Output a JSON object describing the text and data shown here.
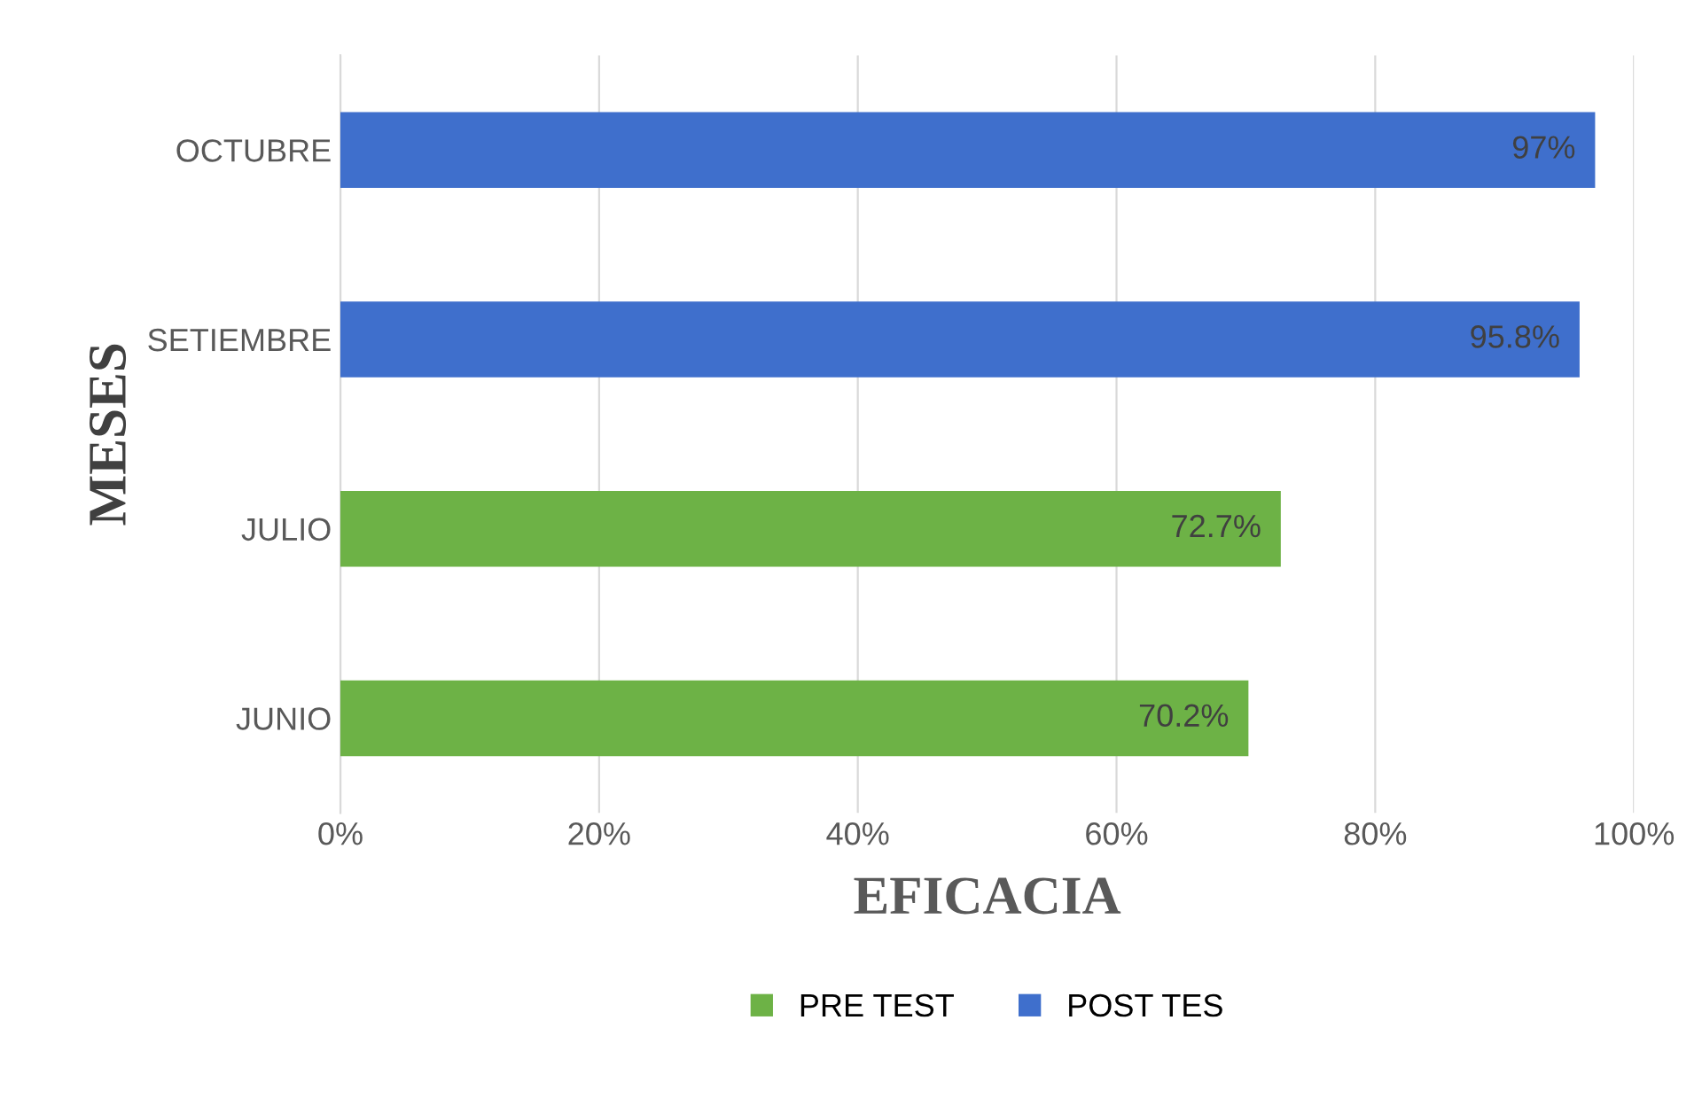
{
  "chart_data": {
    "type": "bar",
    "orientation": "horizontal",
    "xlabel": "EFICACIA",
    "ylabel": "MESES",
    "categories": [
      "OCTUBRE",
      "SETIEMBRE",
      "JULIO",
      "JUNIO"
    ],
    "series": [
      {
        "name": "PRE TEST",
        "color": "#6db246",
        "values": [
          null,
          null,
          72.7,
          70.2
        ],
        "value_labels": [
          null,
          null,
          "72.7%",
          "70.2%"
        ]
      },
      {
        "name": "POST TES",
        "color": "#3f6fcc",
        "values": [
          97,
          95.8,
          null,
          null
        ],
        "value_labels": [
          "97%",
          "95.8%",
          null,
          null
        ]
      }
    ],
    "xlim": [
      0,
      100
    ],
    "xticks": [
      {
        "value": 0,
        "label": "0%"
      },
      {
        "value": 20,
        "label": "20%"
      },
      {
        "value": 40,
        "label": "40%"
      },
      {
        "value": 60,
        "label": "60%"
      },
      {
        "value": 80,
        "label": "80%"
      },
      {
        "value": 100,
        "label": "100%"
      }
    ],
    "grid": "x",
    "legend": "bottom"
  }
}
